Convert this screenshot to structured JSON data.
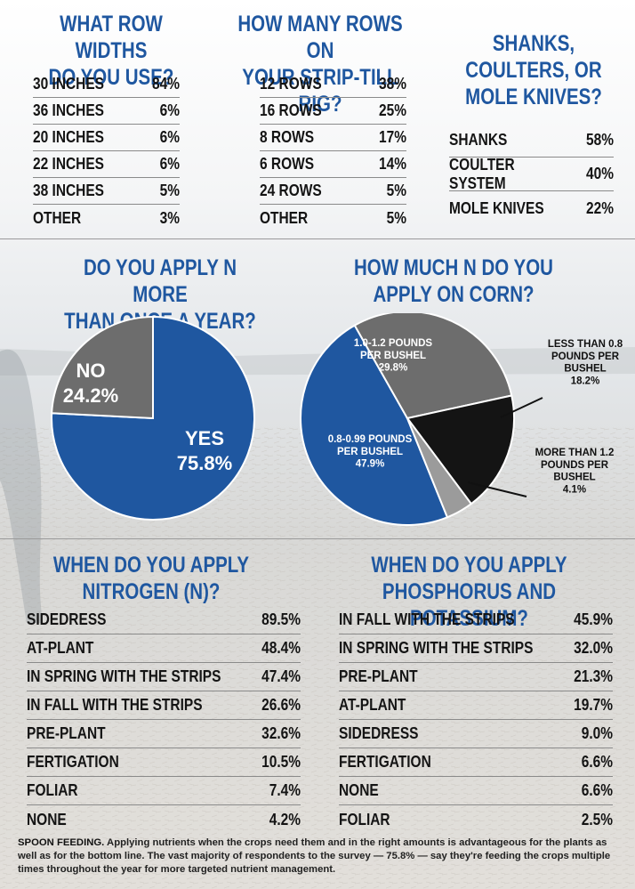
{
  "row_widths": {
    "title_line1": "WHAT ROW WIDTHS",
    "title_line2": "DO YOU USE?",
    "rows": [
      {
        "label": "30 INCHES",
        "value": "84%"
      },
      {
        "label": "36 INCHES",
        "value": "6%"
      },
      {
        "label": "20 INCHES",
        "value": "6%"
      },
      {
        "label": "22 INCHES",
        "value": "6%"
      },
      {
        "label": "38 INCHES",
        "value": "5%"
      },
      {
        "label": "OTHER",
        "value": "3%"
      }
    ]
  },
  "rig_rows": {
    "title_line1": "HOW MANY ROWS ON",
    "title_line2": "YOUR STRIP-TILL RIG?",
    "rows": [
      {
        "label": "12 ROWS",
        "value": "38%"
      },
      {
        "label": "16 ROWS",
        "value": "25%"
      },
      {
        "label": "8 ROWS",
        "value": "17%"
      },
      {
        "label": "6 ROWS",
        "value": "14%"
      },
      {
        "label": "24 ROWS",
        "value": "5%"
      },
      {
        "label": "OTHER",
        "value": "5%"
      }
    ]
  },
  "shanks": {
    "title_line1": "SHANKS,",
    "title_line2": "COULTERS, OR",
    "title_line3": "MOLE KNIVES?",
    "rows": [
      {
        "label": "SHANKS",
        "value": "58%"
      },
      {
        "label": "COULTER SYSTEM",
        "value": "40%"
      },
      {
        "label": "MOLE KNIVES",
        "value": "22%"
      }
    ]
  },
  "apply_n_more": {
    "title_line1": "DO YOU APPLY N MORE",
    "title_line2": "THAN ONCE A YEAR?"
  },
  "how_much_n": {
    "title_line1": "HOW MUCH N DO YOU",
    "title_line2": "APPLY ON CORN?"
  },
  "when_n": {
    "title_line1": "WHEN DO YOU APPLY",
    "title_line2": "NITROGEN (N)?",
    "rows": [
      {
        "label": "SIDEDRESS",
        "value": "89.5%"
      },
      {
        "label": "AT-PLANT",
        "value": "48.4%"
      },
      {
        "label": "IN SPRING WITH THE STRIPS",
        "value": "47.4%"
      },
      {
        "label": "IN FALL WITH THE STRIPS",
        "value": "26.6%"
      },
      {
        "label": "PRE-PLANT",
        "value": "32.6%"
      },
      {
        "label": "FERTIGATION",
        "value": "10.5%"
      },
      {
        "label": "FOLIAR",
        "value": "7.4%"
      },
      {
        "label": "NONE",
        "value": "4.2%"
      }
    ]
  },
  "when_pk": {
    "title_line1": "WHEN DO YOU APPLY",
    "title_line2": "PHOSPHORUS AND POTASSIUM?",
    "rows": [
      {
        "label": "IN FALL WITH THE STRIPS",
        "value": "45.9%"
      },
      {
        "label": "IN SPRING WITH THE STRIPS",
        "value": "32.0%"
      },
      {
        "label": "PRE-PLANT",
        "value": "21.3%"
      },
      {
        "label": "AT-PLANT",
        "value": "19.7%"
      },
      {
        "label": "SIDEDRESS",
        "value": "9.0%"
      },
      {
        "label": "FERTIGATION",
        "value": "6.6%"
      },
      {
        "label": "NONE",
        "value": "6.6%"
      },
      {
        "label": "FOLIAR",
        "value": "2.5%"
      }
    ]
  },
  "caption": {
    "lead": "SPOON FEEDING.",
    "text": "Applying nutrients when the crops need them and in the right amounts is advantageous for the plants as well as for the bottom line. The vast majority of respondents to the survey — 75.8% — say they're feeding the crops multiple times throughout the year for more targeted nutrient management."
  },
  "colors": {
    "blue": "#1f57a0",
    "gray": "#6d6d6d",
    "black": "#141414",
    "light_gray": "#9b9b9b"
  },
  "chart_data": [
    {
      "type": "pie",
      "title": "DO YOU APPLY N MORE THAN ONCE A YEAR?",
      "slices": [
        {
          "name": "YES",
          "value": 75.8,
          "label": "75.8%",
          "color": "#1f57a0"
        },
        {
          "name": "NO",
          "value": 24.2,
          "label": "24.2%",
          "color": "#6d6d6d"
        }
      ]
    },
    {
      "type": "pie",
      "title": "HOW MUCH N DO YOU APPLY ON CORN?",
      "slices": [
        {
          "name": "0.8-0.99 POUNDS PER BUSHEL",
          "value": 47.9,
          "label": "47.9%",
          "color": "#1f57a0"
        },
        {
          "name": "1.0-1.2 POUNDS PER BUSHEL",
          "value": 29.8,
          "label": "29.8%",
          "color": "#6d6d6d"
        },
        {
          "name": "LESS THAN 0.8 POUNDS PER BUSHEL",
          "value": 18.2,
          "label": "18.2%",
          "color": "#141414"
        },
        {
          "name": "MORE THAN 1.2 POUNDS PER BUSHEL",
          "value": 4.1,
          "label": "4.1%",
          "color": "#9b9b9b"
        }
      ]
    }
  ]
}
